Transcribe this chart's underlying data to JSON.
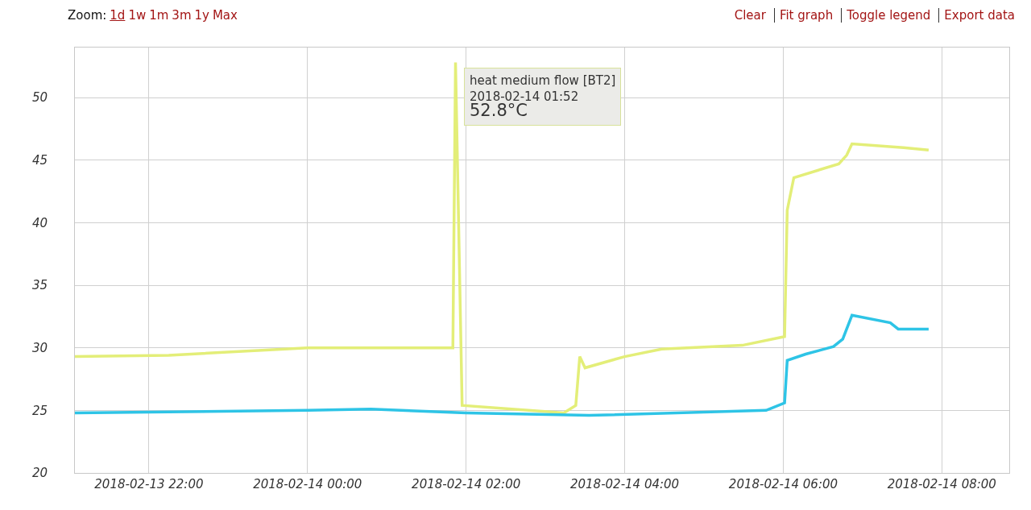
{
  "chart_data": {
    "type": "line",
    "grid": true,
    "marker": "none",
    "line_style": "solid",
    "xlim": [
      "2018-02-13T21:04",
      "2018-02-14T08:51"
    ],
    "xticks": [
      {
        "value": "2018-02-13T22:00",
        "label": "2018-02-13 22:00"
      },
      {
        "value": "2018-02-14T00:00",
        "label": "2018-02-14 00:00"
      },
      {
        "value": "2018-02-14T02:00",
        "label": "2018-02-14 02:00"
      },
      {
        "value": "2018-02-14T04:00",
        "label": "2018-02-14 04:00"
      },
      {
        "value": "2018-02-14T06:00",
        "label": "2018-02-14 06:00"
      },
      {
        "value": "2018-02-14T08:00",
        "label": "2018-02-14 08:00"
      }
    ],
    "ylim": [
      20,
      54
    ],
    "yticks": [
      20,
      25,
      30,
      35,
      40,
      45,
      50
    ],
    "series": [
      {
        "color": "#e3ee78",
        "x": [
          "2018-02-13T21:04",
          "2018-02-13T22:15",
          "2018-02-14T00:00",
          "2018-02-14T01:50",
          "2018-02-14T01:52",
          "2018-02-14T01:57",
          "2018-02-14T03:14",
          "2018-02-14T03:23",
          "2018-02-14T03:26",
          "2018-02-14T03:30",
          "2018-02-14T04:00",
          "2018-02-14T04:28",
          "2018-02-14T05:29",
          "2018-02-14T06:01",
          "2018-02-14T06:03",
          "2018-02-14T06:08",
          "2018-02-14T06:42",
          "2018-02-14T06:48",
          "2018-02-14T06:52",
          "2018-02-14T07:31",
          "2018-02-14T07:50"
        ],
        "values": [
          29.3,
          29.4,
          30.0,
          30.0,
          52.8,
          25.4,
          24.8,
          25.4,
          29.3,
          28.4,
          29.3,
          29.9,
          30.2,
          30.9,
          41.0,
          43.6,
          44.7,
          45.4,
          46.3,
          46.0,
          45.8
        ]
      },
      {
        "color": "#2ec4e6",
        "x": [
          "2018-02-13T21:04",
          "2018-02-14T00:00",
          "2018-02-14T00:48",
          "2018-02-14T02:00",
          "2018-02-14T03:33",
          "2018-02-14T05:47",
          "2018-02-14T06:01",
          "2018-02-14T06:03",
          "2018-02-14T06:17",
          "2018-02-14T06:38",
          "2018-02-14T06:45",
          "2018-02-14T06:52",
          "2018-02-14T07:21",
          "2018-02-14T07:27",
          "2018-02-14T07:50"
        ],
        "values": [
          24.8,
          25.0,
          25.1,
          24.8,
          24.6,
          25.0,
          25.6,
          29.0,
          29.5,
          30.1,
          30.7,
          32.6,
          32.0,
          31.5,
          31.5
        ]
      }
    ],
    "annotations": [
      "Zoom:",
      "1d",
      "1w",
      "1m",
      "3m",
      "1y",
      "Max",
      "Clear",
      "Fit graph",
      "Toggle legend",
      "Export data",
      {
        "text": "heat medium flow [BT2]\n2018-02-14 01:52\n52.8°C",
        "x": "2018-02-14T01:52",
        "y": 52.8
      }
    ]
  }
}
